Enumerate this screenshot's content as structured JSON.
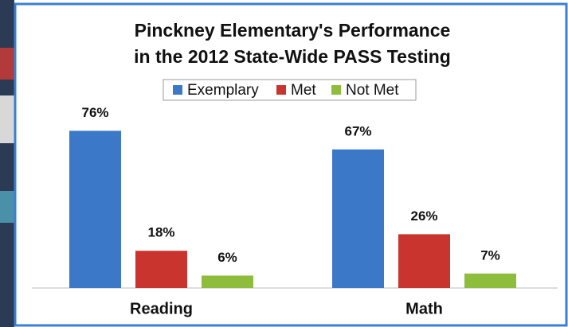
{
  "chart_data": {
    "type": "bar",
    "title": [
      "Pinckney Elementary's Performance",
      "in the 2012 State-Wide PASS Testing"
    ],
    "categories": [
      "Reading",
      "Math"
    ],
    "series": [
      {
        "name": "Exemplary",
        "color": "#3b78c8",
        "values": [
          76,
          67
        ],
        "value_labels": [
          "76%",
          "67%"
        ]
      },
      {
        "name": "Met",
        "color": "#c9342f",
        "values": [
          18,
          26
        ],
        "value_labels": [
          "18%",
          "26%"
        ]
      },
      {
        "name": "Not Met",
        "color": "#8dbd3a",
        "values": [
          6,
          7
        ],
        "value_labels": [
          "6%",
          "7%"
        ]
      }
    ],
    "legend": "top"
  }
}
